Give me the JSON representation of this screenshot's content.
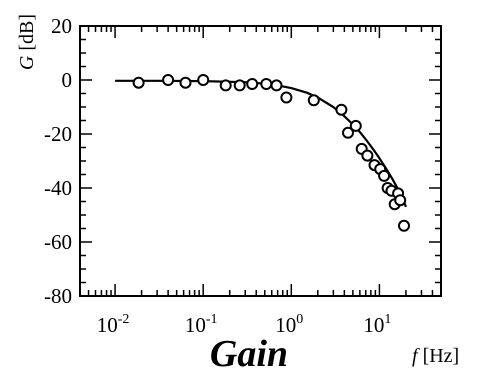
{
  "chart_data": {
    "type": "scatter",
    "title": "Gain",
    "xlabel": "f [Hz]",
    "xlabel_var": "f",
    "xlabel_unit": "[Hz]",
    "ylabel": "G [dB]",
    "ylabel_var": "G",
    "ylabel_unit": "[dB]",
    "x_scale": "log",
    "xlim": [
      0.004,
      50
    ],
    "ylim": [
      -80,
      20
    ],
    "x_ticks": [
      {
        "value": 0.01,
        "base": "10",
        "exp": "-2"
      },
      {
        "value": 0.1,
        "base": "10",
        "exp": "-1"
      },
      {
        "value": 1,
        "base": "10",
        "exp": "0"
      },
      {
        "value": 10,
        "base": "10",
        "exp": "1"
      }
    ],
    "y_ticks": [
      20,
      0,
      -20,
      -40,
      -60,
      -80
    ],
    "y_tick_labels": [
      "20",
      "0",
      "-20",
      "-40",
      "-60",
      "-80"
    ],
    "grid": false,
    "series": [
      {
        "kind": "points",
        "marker": "open-circle",
        "x": [
          0.0185,
          0.04,
          0.063,
          0.1,
          0.18,
          0.26,
          0.36,
          0.52,
          0.68,
          0.88,
          1.8,
          3.7,
          4.4,
          5.4,
          6.3,
          7.3,
          8.8,
          10.2,
          11.3,
          12.4,
          13.7,
          14.9,
          16.3,
          17.2,
          19.0
        ],
        "y": [
          -1,
          0,
          -1,
          0,
          -2,
          -2,
          -1.5,
          -1.5,
          -2,
          -6.5,
          -7.5,
          -11,
          -19.5,
          -17,
          -25.5,
          -28,
          -31.5,
          -33,
          -35.5,
          -40,
          -41,
          -46,
          -42,
          -44.5,
          -54
        ]
      },
      {
        "kind": "line",
        "x": [
          0.01,
          0.03,
          0.1,
          0.3,
          0.6,
          1.0,
          1.5,
          2.0,
          3.0,
          4.0,
          5.0,
          6.0,
          7.0,
          8.0,
          9.0,
          10.0,
          12.0,
          14.0,
          16.0,
          18.0,
          20.0
        ],
        "y": [
          -0.3,
          -0.3,
          -0.4,
          -0.8,
          -1.6,
          -3.0,
          -4.7,
          -6.5,
          -10.0,
          -13.4,
          -16.5,
          -19.3,
          -22.0,
          -24.5,
          -26.8,
          -29.0,
          -33.0,
          -36.6,
          -40.0,
          -43.0,
          -47.0
        ]
      }
    ]
  }
}
